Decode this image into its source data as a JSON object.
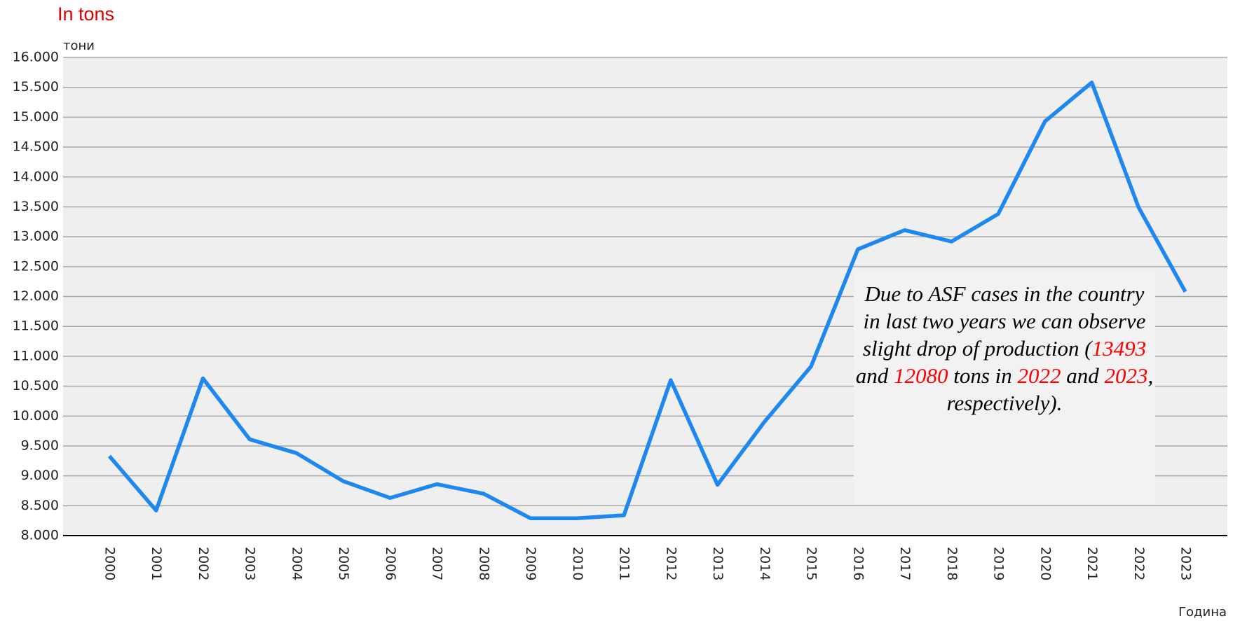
{
  "chart_data": {
    "type": "line",
    "title": "In tons",
    "y_label": "тони",
    "x_label": "Година",
    "categories": [
      "2000",
      "2001",
      "2002",
      "2003",
      "2004",
      "2005",
      "2006",
      "2007",
      "2008",
      "2009",
      "2010",
      "2011",
      "2012",
      "2013",
      "2014",
      "2015",
      "2016",
      "2017",
      "2018",
      "2019",
      "2020",
      "2021",
      "2022",
      "2023"
    ],
    "series": [
      {
        "name": "тони",
        "color": "#1e88f0",
        "values": [
          9330,
          8420,
          10630,
          9610,
          9380,
          8910,
          8630,
          8860,
          8700,
          8290,
          8290,
          8340,
          10600,
          8850,
          9900,
          10830,
          12790,
          13110,
          12920,
          13380,
          14930,
          15580,
          13493,
          12080
        ]
      }
    ],
    "ylim": [
      8000,
      16000
    ],
    "yticks": [
      {
        "value": 8000,
        "label": "8.000"
      },
      {
        "value": 8500,
        "label": "8.500"
      },
      {
        "value": 9000,
        "label": "9.000"
      },
      {
        "value": 9500,
        "label": "9.500"
      },
      {
        "value": 10000,
        "label": "10.000"
      },
      {
        "value": 10500,
        "label": "10.500"
      },
      {
        "value": 11000,
        "label": "11.000"
      },
      {
        "value": 11500,
        "label": "11.500"
      },
      {
        "value": 12000,
        "label": "12.000"
      },
      {
        "value": 12500,
        "label": "12.500"
      },
      {
        "value": 13000,
        "label": "13.000"
      },
      {
        "value": 13500,
        "label": "13.500"
      },
      {
        "value": 14000,
        "label": "14.000"
      },
      {
        "value": 14500,
        "label": "14.500"
      },
      {
        "value": 15000,
        "label": "15.000"
      },
      {
        "value": 15500,
        "label": "15.500"
      },
      {
        "value": 16000,
        "label": "16.000"
      }
    ],
    "grid": true,
    "annotation": [
      {
        "text": "Due to ASF cases in the country in last two years we can observe slight drop of production ("
      },
      {
        "text": "13493",
        "color": "red"
      },
      {
        "text": " and "
      },
      {
        "text": "12080",
        "color": "red"
      },
      {
        "text": " tons in "
      },
      {
        "text": "2022",
        "color": "red"
      },
      {
        "text": " and "
      },
      {
        "text": "2023",
        "color": "red"
      },
      {
        "text": ", respectively)."
      }
    ]
  }
}
